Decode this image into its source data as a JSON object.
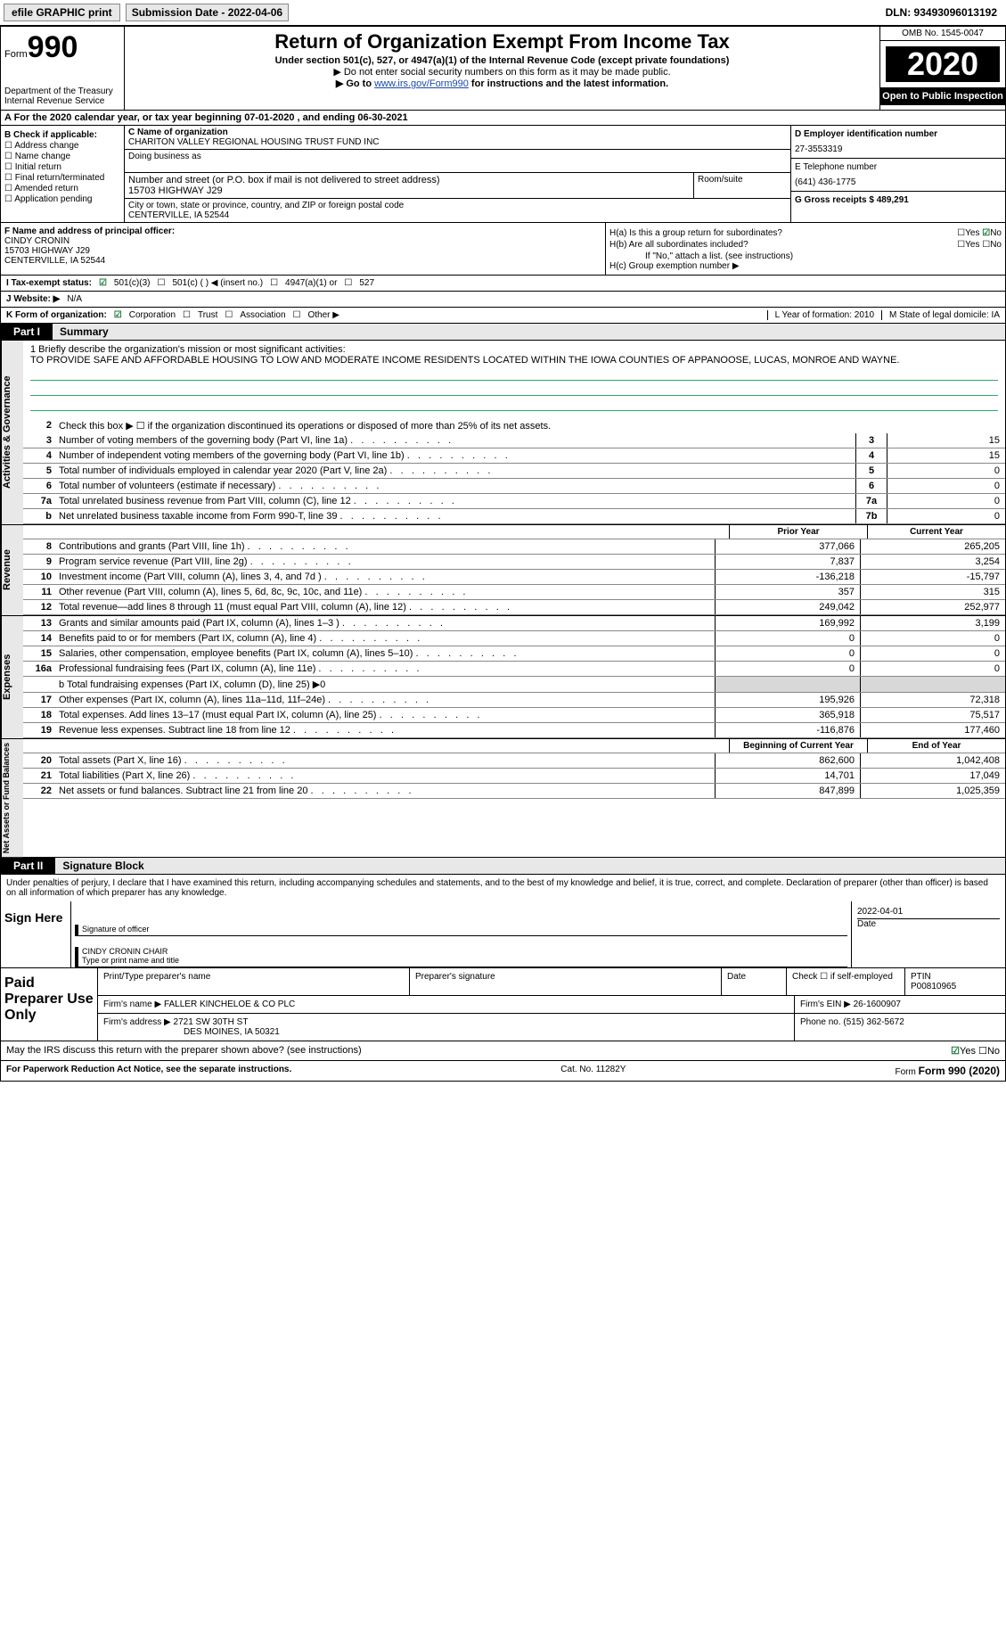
{
  "topbar": {
    "efile_label": "efile GRAPHIC print",
    "submission_label": "Submission Date - 2022-04-06",
    "dln_label": "DLN: 93493096013192"
  },
  "header": {
    "form_word": "Form",
    "form_num": "990",
    "dept": "Department of the Treasury\nInternal Revenue Service",
    "title": "Return of Organization Exempt From Income Tax",
    "sub1": "Under section 501(c), 527, or 4947(a)(1) of the Internal Revenue Code (except private foundations)",
    "sub2": "▶ Do not enter social security numbers on this form as it may be made public.",
    "sub3_pre": "▶ Go to ",
    "sub3_link": "www.irs.gov/Form990",
    "sub3_post": " for instructions and the latest information.",
    "omb": "OMB No. 1545-0047",
    "year": "2020",
    "open_public": "Open to Public Inspection"
  },
  "row_a": "A For the 2020 calendar year, or tax year beginning 07-01-2020   , and ending 06-30-2021",
  "col_b": {
    "label": "B Check if applicable:",
    "addr": "Address change",
    "name": "Name change",
    "init": "Initial return",
    "final": "Final return/terminated",
    "amend": "Amended return",
    "app": "Application pending"
  },
  "col_c": {
    "name_lbl": "C Name of organization",
    "name": "CHARITON VALLEY REGIONAL HOUSING TRUST FUND INC",
    "dba_lbl": "Doing business as",
    "addr_lbl": "Number and street (or P.O. box if mail is not delivered to street address)",
    "room_lbl": "Room/suite",
    "addr": "15703 HIGHWAY J29",
    "city_lbl": "City or town, state or province, country, and ZIP or foreign postal code",
    "city": "CENTERVILLE, IA  52544"
  },
  "col_d": {
    "ein_lbl": "D Employer identification number",
    "ein": "27-3553319",
    "tel_lbl": "E Telephone number",
    "tel": "(641) 436-1775",
    "gross_lbl": "G Gross receipts $ 489,291"
  },
  "col_f": {
    "lbl": "F  Name and address of principal officer:",
    "name": "CINDY CRONIN",
    "addr1": "15703 HIGHWAY J29",
    "addr2": "CENTERVILLE, IA  52544"
  },
  "col_h": {
    "ha_lbl": "H(a)  Is this a group return for subordinates?",
    "ha_yes": "Yes",
    "ha_no": "No",
    "hb_lbl": "H(b)  Are all subordinates included?",
    "hb_yes": "Yes",
    "hb_no": "No",
    "hb_note": "If \"No,\" attach a list. (see instructions)",
    "hc_lbl": "H(c)  Group exemption number ▶"
  },
  "row_i": {
    "lbl": "I   Tax-exempt status:",
    "o1": "501(c)(3)",
    "o2": "501(c) (  ) ◀ (insert no.)",
    "o3": "4947(a)(1) or",
    "o4": "527"
  },
  "row_j": {
    "lbl": "J   Website: ▶",
    "val": "N/A"
  },
  "row_k": {
    "lbl": "K Form of organization:",
    "o1": "Corporation",
    "o2": "Trust",
    "o3": "Association",
    "o4": "Other ▶",
    "l_lbl": "L Year of formation: 2010",
    "m_lbl": "M State of legal domicile: IA"
  },
  "part1": {
    "tab": "Part I",
    "title": "Summary"
  },
  "mission": {
    "lbl": "1 Briefly describe the organization's mission or most significant activities:",
    "txt": "TO PROVIDE SAFE AND AFFORDABLE HOUSING TO LOW AND MODERATE INCOME RESIDENTS LOCATED WITHIN THE IOWA COUNTIES OF APPANOOSE, LUCAS, MONROE AND WAYNE."
  },
  "gov": {
    "vlabel": "Activities & Governance",
    "l2": "Check this box ▶ ☐  if the organization discontinued its operations or disposed of more than 25% of its net assets.",
    "rows": [
      {
        "n": "3",
        "d": "Number of voting members of the governing body (Part VI, line 1a)",
        "box": "3",
        "v": "15"
      },
      {
        "n": "4",
        "d": "Number of independent voting members of the governing body (Part VI, line 1b)",
        "box": "4",
        "v": "15"
      },
      {
        "n": "5",
        "d": "Total number of individuals employed in calendar year 2020 (Part V, line 2a)",
        "box": "5",
        "v": "0"
      },
      {
        "n": "6",
        "d": "Total number of volunteers (estimate if necessary)",
        "box": "6",
        "v": "0"
      },
      {
        "n": "7a",
        "d": "Total unrelated business revenue from Part VIII, column (C), line 12",
        "box": "7a",
        "v": "0"
      },
      {
        "n": "b",
        "d": "Net unrelated business taxable income from Form 990-T, line 39",
        "box": "7b",
        "v": "0"
      }
    ]
  },
  "rev": {
    "vlabel": "Revenue",
    "head_py": "Prior Year",
    "head_cy": "Current Year",
    "rows": [
      {
        "n": "8",
        "d": "Contributions and grants (Part VIII, line 1h)",
        "py": "377,066",
        "cy": "265,205"
      },
      {
        "n": "9",
        "d": "Program service revenue (Part VIII, line 2g)",
        "py": "7,837",
        "cy": "3,254"
      },
      {
        "n": "10",
        "d": "Investment income (Part VIII, column (A), lines 3, 4, and 7d )",
        "py": "-136,218",
        "cy": "-15,797"
      },
      {
        "n": "11",
        "d": "Other revenue (Part VIII, column (A), lines 5, 6d, 8c, 9c, 10c, and 11e)",
        "py": "357",
        "cy": "315"
      },
      {
        "n": "12",
        "d": "Total revenue—add lines 8 through 11 (must equal Part VIII, column (A), line 12)",
        "py": "249,042",
        "cy": "252,977"
      }
    ]
  },
  "exp": {
    "vlabel": "Expenses",
    "rows": [
      {
        "n": "13",
        "d": "Grants and similar amounts paid (Part IX, column (A), lines 1–3 )",
        "py": "169,992",
        "cy": "3,199"
      },
      {
        "n": "14",
        "d": "Benefits paid to or for members (Part IX, column (A), line 4)",
        "py": "0",
        "cy": "0"
      },
      {
        "n": "15",
        "d": "Salaries, other compensation, employee benefits (Part IX, column (A), lines 5–10)",
        "py": "0",
        "cy": "0"
      },
      {
        "n": "16a",
        "d": "Professional fundraising fees (Part IX, column (A), line 11e)",
        "py": "0",
        "cy": "0"
      }
    ],
    "l16b": "b  Total fundraising expenses (Part IX, column (D), line 25) ▶0",
    "rows2": [
      {
        "n": "17",
        "d": "Other expenses (Part IX, column (A), lines 11a–11d, 11f–24e)",
        "py": "195,926",
        "cy": "72,318"
      },
      {
        "n": "18",
        "d": "Total expenses. Add lines 13–17 (must equal Part IX, column (A), line 25)",
        "py": "365,918",
        "cy": "75,517"
      },
      {
        "n": "19",
        "d": "Revenue less expenses. Subtract line 18 from line 12",
        "py": "-116,876",
        "cy": "177,460"
      }
    ]
  },
  "net": {
    "vlabel": "Net Assets or Fund Balances",
    "head_py": "Beginning of Current Year",
    "head_cy": "End of Year",
    "rows": [
      {
        "n": "20",
        "d": "Total assets (Part X, line 16)",
        "py": "862,600",
        "cy": "1,042,408"
      },
      {
        "n": "21",
        "d": "Total liabilities (Part X, line 26)",
        "py": "14,701",
        "cy": "17,049"
      },
      {
        "n": "22",
        "d": "Net assets or fund balances. Subtract line 21 from line 20",
        "py": "847,899",
        "cy": "1,025,359"
      }
    ]
  },
  "part2": {
    "tab": "Part II",
    "title": "Signature Block"
  },
  "sig": {
    "decl": "Under penalties of perjury, I declare that I have examined this return, including accompanying schedules and statements, and to the best of my knowledge and belief, it is true, correct, and complete. Declaration of preparer (other than officer) is based on all information of which preparer has any knowledge.",
    "sign_here": "Sign Here",
    "sig_of": "Signature of officer",
    "date_lbl": "Date",
    "date": "2022-04-01",
    "name": "CINDY CRONIN  CHAIR",
    "name_lbl": "Type or print name and title"
  },
  "prep": {
    "title": "Paid Preparer Use Only",
    "h_name": "Print/Type preparer's name",
    "h_sig": "Preparer's signature",
    "h_date": "Date",
    "h_chk": "Check ☐  if self-employed",
    "h_ptin": "PTIN",
    "ptin": "P00810965",
    "firm_lbl": "Firm's name   ▶",
    "firm": "FALLER KINCHELOE & CO PLC",
    "ein_lbl": "Firm's EIN ▶",
    "ein": "26-1600907",
    "addr_lbl": "Firm's address ▶",
    "addr1": "2721 SW 30TH ST",
    "addr2": "DES MOINES, IA  50321",
    "phone_lbl": "Phone no.",
    "phone": "(515) 362-5672"
  },
  "discuss": {
    "q": "May the IRS discuss this return with the preparer shown above? (see instructions)",
    "yes": "Yes",
    "no": "No"
  },
  "footer": {
    "l": "For Paperwork Reduction Act Notice, see the separate instructions.",
    "m": "Cat. No. 11282Y",
    "r": "Form 990 (2020)"
  }
}
